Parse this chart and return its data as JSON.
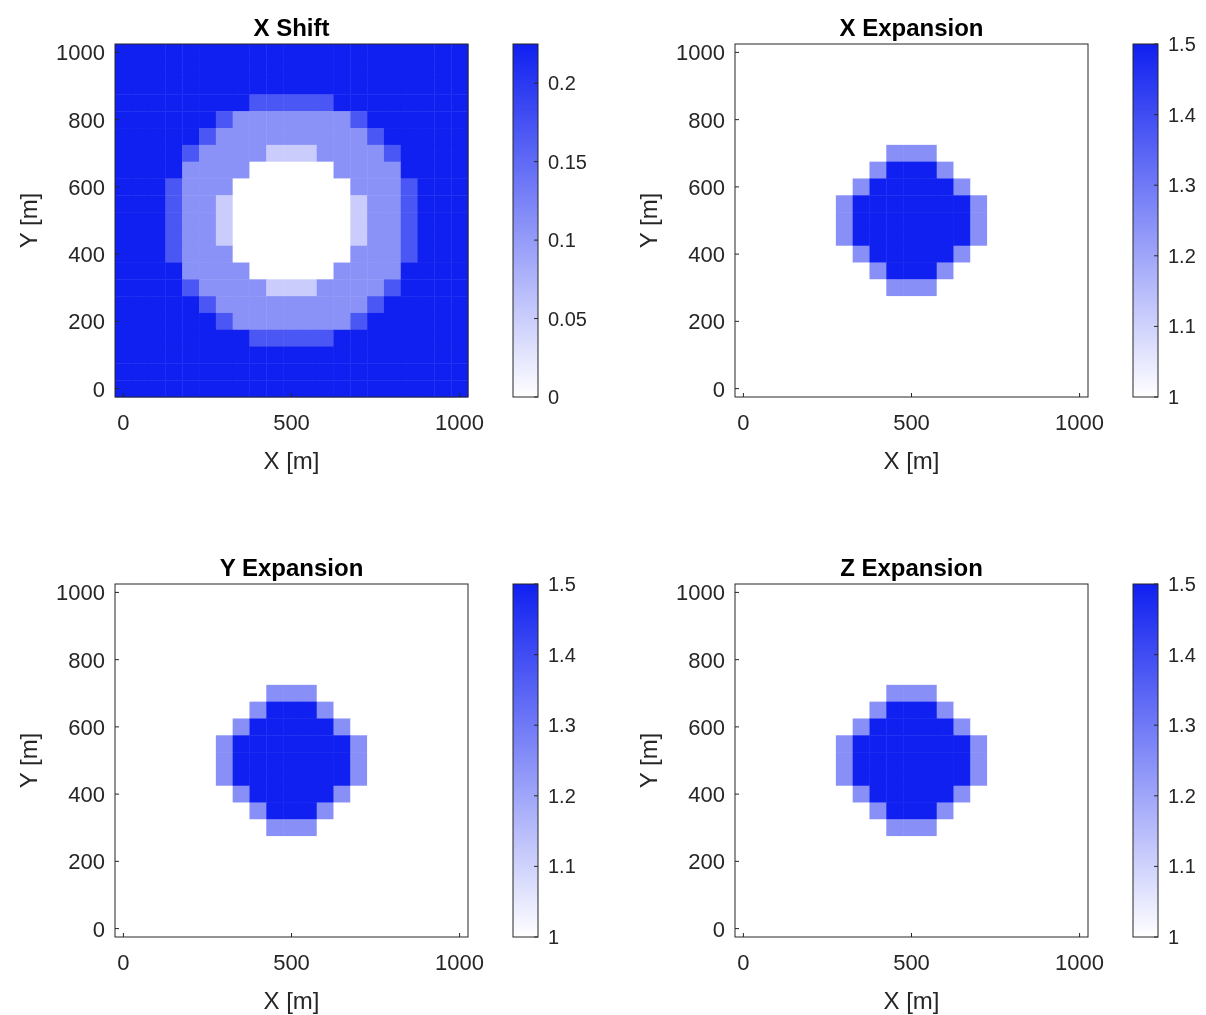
{
  "chart_data": [
    {
      "type": "heatmap",
      "title": "X Shift",
      "xlabel": "X [m]",
      "ylabel": "Y [m]",
      "clim": [
        0,
        0.225
      ],
      "cticks": [
        0,
        0.05,
        0.1,
        0.15,
        0.2
      ],
      "colors": [
        "#ffffff",
        "#1020f0"
      ],
      "categories": [
        "0",
        null,
        null,
        null,
        null,
        null,
        null,
        null,
        null,
        null,
        "500",
        null,
        null,
        null,
        null,
        null,
        null,
        null,
        null,
        null,
        "1000"
      ],
      "y_categories": [
        "1000",
        null,
        null,
        null,
        "800",
        null,
        null,
        null,
        "600",
        null,
        null,
        null,
        "400",
        null,
        null,
        null,
        "200",
        null,
        null,
        null,
        "0"
      ],
      "cells": [
        [
          0.225,
          0.225,
          0.225,
          0.225,
          0.225,
          0.225,
          0.225,
          0.225,
          0.225,
          0.225,
          0.225,
          0.225,
          0.225,
          0.225,
          0.225,
          0.225,
          0.225,
          0.225,
          0.225,
          0.225,
          0.225
        ],
        [
          0.225,
          0.225,
          0.225,
          0.225,
          0.225,
          0.225,
          0.225,
          0.225,
          0.225,
          0.225,
          0.225,
          0.225,
          0.225,
          0.225,
          0.225,
          0.225,
          0.225,
          0.225,
          0.225,
          0.225,
          0.225
        ],
        [
          0.225,
          0.225,
          0.225,
          0.225,
          0.225,
          0.225,
          0.225,
          0.225,
          0.225,
          0.225,
          0.225,
          0.225,
          0.225,
          0.225,
          0.225,
          0.225,
          0.225,
          0.225,
          0.225,
          0.225,
          0.225
        ],
        [
          0.225,
          0.225,
          0.225,
          0.225,
          0.225,
          0.225,
          0.225,
          0.225,
          0.17,
          0.17,
          0.17,
          0.17,
          0.17,
          0.225,
          0.225,
          0.225,
          0.225,
          0.225,
          0.225,
          0.225,
          0.225
        ],
        [
          0.225,
          0.225,
          0.225,
          0.225,
          0.225,
          0.225,
          0.17,
          0.11,
          0.11,
          0.11,
          0.11,
          0.11,
          0.11,
          0.11,
          0.17,
          0.225,
          0.225,
          0.225,
          0.225,
          0.225,
          0.225
        ],
        [
          0.225,
          0.225,
          0.225,
          0.225,
          0.225,
          0.17,
          0.11,
          0.11,
          0.11,
          0.11,
          0.11,
          0.11,
          0.11,
          0.11,
          0.11,
          0.17,
          0.225,
          0.225,
          0.225,
          0.225,
          0.225
        ],
        [
          0.225,
          0.225,
          0.225,
          0.225,
          0.17,
          0.11,
          0.11,
          0.11,
          0.11,
          0.05,
          0.05,
          0.05,
          0.11,
          0.11,
          0.11,
          0.11,
          0.17,
          0.225,
          0.225,
          0.225,
          0.225
        ],
        [
          0.225,
          0.225,
          0.225,
          0.225,
          0.11,
          0.11,
          0.11,
          0.11,
          0,
          0,
          0,
          0,
          0,
          0.11,
          0.11,
          0.11,
          0.11,
          0.225,
          0.225,
          0.225,
          0.225
        ],
        [
          0.225,
          0.225,
          0.225,
          0.17,
          0.11,
          0.11,
          0.11,
          0,
          0,
          0,
          0,
          0,
          0,
          0,
          0.11,
          0.11,
          0.11,
          0.17,
          0.225,
          0.225,
          0.225
        ],
        [
          0.225,
          0.225,
          0.225,
          0.17,
          0.11,
          0.11,
          0.05,
          0,
          0,
          0,
          0,
          0,
          0,
          0,
          0.05,
          0.11,
          0.11,
          0.17,
          0.225,
          0.225,
          0.225
        ],
        [
          0.225,
          0.225,
          0.225,
          0.17,
          0.11,
          0.11,
          0.05,
          0,
          0,
          0,
          0,
          0,
          0,
          0,
          0.05,
          0.11,
          0.11,
          0.17,
          0.225,
          0.225,
          0.225
        ],
        [
          0.225,
          0.225,
          0.225,
          0.17,
          0.11,
          0.11,
          0.05,
          0,
          0,
          0,
          0,
          0,
          0,
          0,
          0.05,
          0.11,
          0.11,
          0.17,
          0.225,
          0.225,
          0.225
        ],
        [
          0.225,
          0.225,
          0.225,
          0.17,
          0.11,
          0.11,
          0.11,
          0,
          0,
          0,
          0,
          0,
          0,
          0,
          0.11,
          0.11,
          0.11,
          0.17,
          0.225,
          0.225,
          0.225
        ],
        [
          0.225,
          0.225,
          0.225,
          0.225,
          0.11,
          0.11,
          0.11,
          0.11,
          0,
          0,
          0,
          0,
          0,
          0.11,
          0.11,
          0.11,
          0.11,
          0.225,
          0.225,
          0.225,
          0.225
        ],
        [
          0.225,
          0.225,
          0.225,
          0.225,
          0.17,
          0.11,
          0.11,
          0.11,
          0.11,
          0.05,
          0.05,
          0.05,
          0.11,
          0.11,
          0.11,
          0.11,
          0.17,
          0.225,
          0.225,
          0.225,
          0.225
        ],
        [
          0.225,
          0.225,
          0.225,
          0.225,
          0.225,
          0.17,
          0.11,
          0.11,
          0.11,
          0.11,
          0.11,
          0.11,
          0.11,
          0.11,
          0.11,
          0.17,
          0.225,
          0.225,
          0.225,
          0.225,
          0.225
        ],
        [
          0.225,
          0.225,
          0.225,
          0.225,
          0.225,
          0.225,
          0.17,
          0.11,
          0.11,
          0.11,
          0.11,
          0.11,
          0.11,
          0.11,
          0.17,
          0.225,
          0.225,
          0.225,
          0.225,
          0.225,
          0.225
        ],
        [
          0.225,
          0.225,
          0.225,
          0.225,
          0.225,
          0.225,
          0.225,
          0.225,
          0.17,
          0.17,
          0.17,
          0.17,
          0.17,
          0.225,
          0.225,
          0.225,
          0.225,
          0.225,
          0.225,
          0.225,
          0.225
        ],
        [
          0.225,
          0.225,
          0.225,
          0.225,
          0.225,
          0.225,
          0.225,
          0.225,
          0.225,
          0.225,
          0.225,
          0.225,
          0.225,
          0.225,
          0.225,
          0.225,
          0.225,
          0.225,
          0.225,
          0.225,
          0.225
        ],
        [
          0.225,
          0.225,
          0.225,
          0.225,
          0.225,
          0.225,
          0.225,
          0.225,
          0.225,
          0.225,
          0.225,
          0.225,
          0.225,
          0.225,
          0.225,
          0.225,
          0.225,
          0.225,
          0.225,
          0.225,
          0.225
        ],
        [
          0.225,
          0.225,
          0.225,
          0.225,
          0.225,
          0.225,
          0.225,
          0.225,
          0.225,
          0.225,
          0.225,
          0.225,
          0.225,
          0.225,
          0.225,
          0.225,
          0.225,
          0.225,
          0.225,
          0.225,
          0.225
        ]
      ]
    },
    {
      "type": "heatmap",
      "title": "X Expansion",
      "xlabel": "X [m]",
      "ylabel": "Y [m]",
      "clim": [
        1,
        1.5
      ],
      "cticks": [
        1,
        1.1,
        1.2,
        1.3,
        1.4,
        1.5
      ],
      "colors": [
        "#ffffff",
        "#1020f0"
      ],
      "categories": [
        "0",
        null,
        null,
        null,
        null,
        null,
        null,
        null,
        null,
        null,
        "500",
        null,
        null,
        null,
        null,
        null,
        null,
        null,
        null,
        null,
        "1000"
      ],
      "y_categories": [
        "1000",
        null,
        null,
        null,
        "800",
        null,
        null,
        null,
        "600",
        null,
        null,
        null,
        "400",
        null,
        null,
        null,
        "200",
        null,
        null,
        null,
        "0"
      ],
      "cells": [
        [
          1,
          1,
          1,
          1,
          1,
          1,
          1,
          1,
          1,
          1,
          1,
          1,
          1,
          1,
          1,
          1,
          1,
          1,
          1,
          1,
          1
        ],
        [
          1,
          1,
          1,
          1,
          1,
          1,
          1,
          1,
          1,
          1,
          1,
          1,
          1,
          1,
          1,
          1,
          1,
          1,
          1,
          1,
          1
        ],
        [
          1,
          1,
          1,
          1,
          1,
          1,
          1,
          1,
          1,
          1,
          1,
          1,
          1,
          1,
          1,
          1,
          1,
          1,
          1,
          1,
          1
        ],
        [
          1,
          1,
          1,
          1,
          1,
          1,
          1,
          1,
          1,
          1,
          1,
          1,
          1,
          1,
          1,
          1,
          1,
          1,
          1,
          1,
          1
        ],
        [
          1,
          1,
          1,
          1,
          1,
          1,
          1,
          1,
          1,
          1,
          1,
          1,
          1,
          1,
          1,
          1,
          1,
          1,
          1,
          1,
          1
        ],
        [
          1,
          1,
          1,
          1,
          1,
          1,
          1,
          1,
          1,
          1,
          1,
          1,
          1,
          1,
          1,
          1,
          1,
          1,
          1,
          1,
          1
        ],
        [
          1,
          1,
          1,
          1,
          1,
          1,
          1,
          1,
          1,
          1.25,
          1.25,
          1.25,
          1,
          1,
          1,
          1,
          1,
          1,
          1,
          1,
          1
        ],
        [
          1,
          1,
          1,
          1,
          1,
          1,
          1,
          1,
          1.25,
          1.5,
          1.5,
          1.5,
          1.25,
          1,
          1,
          1,
          1,
          1,
          1,
          1,
          1
        ],
        [
          1,
          1,
          1,
          1,
          1,
          1,
          1,
          1.25,
          1.5,
          1.5,
          1.5,
          1.5,
          1.5,
          1.25,
          1,
          1,
          1,
          1,
          1,
          1,
          1
        ],
        [
          1,
          1,
          1,
          1,
          1,
          1,
          1.25,
          1.5,
          1.5,
          1.5,
          1.5,
          1.5,
          1.5,
          1.5,
          1.25,
          1,
          1,
          1,
          1,
          1,
          1
        ],
        [
          1,
          1,
          1,
          1,
          1,
          1,
          1.25,
          1.5,
          1.5,
          1.5,
          1.5,
          1.5,
          1.5,
          1.5,
          1.25,
          1,
          1,
          1,
          1,
          1,
          1
        ],
        [
          1,
          1,
          1,
          1,
          1,
          1,
          1.25,
          1.5,
          1.5,
          1.5,
          1.5,
          1.5,
          1.5,
          1.5,
          1.25,
          1,
          1,
          1,
          1,
          1,
          1
        ],
        [
          1,
          1,
          1,
          1,
          1,
          1,
          1,
          1.25,
          1.5,
          1.5,
          1.5,
          1.5,
          1.5,
          1.25,
          1,
          1,
          1,
          1,
          1,
          1,
          1
        ],
        [
          1,
          1,
          1,
          1,
          1,
          1,
          1,
          1,
          1.25,
          1.5,
          1.5,
          1.5,
          1.25,
          1,
          1,
          1,
          1,
          1,
          1,
          1,
          1
        ],
        [
          1,
          1,
          1,
          1,
          1,
          1,
          1,
          1,
          1,
          1.25,
          1.25,
          1.25,
          1,
          1,
          1,
          1,
          1,
          1,
          1,
          1,
          1
        ],
        [
          1,
          1,
          1,
          1,
          1,
          1,
          1,
          1,
          1,
          1,
          1,
          1,
          1,
          1,
          1,
          1,
          1,
          1,
          1,
          1,
          1
        ],
        [
          1,
          1,
          1,
          1,
          1,
          1,
          1,
          1,
          1,
          1,
          1,
          1,
          1,
          1,
          1,
          1,
          1,
          1,
          1,
          1,
          1
        ],
        [
          1,
          1,
          1,
          1,
          1,
          1,
          1,
          1,
          1,
          1,
          1,
          1,
          1,
          1,
          1,
          1,
          1,
          1,
          1,
          1,
          1
        ],
        [
          1,
          1,
          1,
          1,
          1,
          1,
          1,
          1,
          1,
          1,
          1,
          1,
          1,
          1,
          1,
          1,
          1,
          1,
          1,
          1,
          1
        ],
        [
          1,
          1,
          1,
          1,
          1,
          1,
          1,
          1,
          1,
          1,
          1,
          1,
          1,
          1,
          1,
          1,
          1,
          1,
          1,
          1,
          1
        ],
        [
          1,
          1,
          1,
          1,
          1,
          1,
          1,
          1,
          1,
          1,
          1,
          1,
          1,
          1,
          1,
          1,
          1,
          1,
          1,
          1,
          1
        ]
      ]
    },
    {
      "type": "heatmap",
      "title": "Y Expansion",
      "xlabel": "X [m]",
      "ylabel": "Y [m]",
      "clim": [
        1,
        1.5
      ],
      "cticks": [
        1,
        1.1,
        1.2,
        1.3,
        1.4,
        1.5
      ],
      "colors": [
        "#ffffff",
        "#1020f0"
      ],
      "categories": [
        "0",
        null,
        null,
        null,
        null,
        null,
        null,
        null,
        null,
        null,
        "500",
        null,
        null,
        null,
        null,
        null,
        null,
        null,
        null,
        null,
        "1000"
      ],
      "y_categories": [
        "1000",
        null,
        null,
        null,
        "800",
        null,
        null,
        null,
        "600",
        null,
        null,
        null,
        "400",
        null,
        null,
        null,
        "200",
        null,
        null,
        null,
        "0"
      ],
      "cells": [
        [
          1,
          1,
          1,
          1,
          1,
          1,
          1,
          1,
          1,
          1,
          1,
          1,
          1,
          1,
          1,
          1,
          1,
          1,
          1,
          1,
          1
        ],
        [
          1,
          1,
          1,
          1,
          1,
          1,
          1,
          1,
          1,
          1,
          1,
          1,
          1,
          1,
          1,
          1,
          1,
          1,
          1,
          1,
          1
        ],
        [
          1,
          1,
          1,
          1,
          1,
          1,
          1,
          1,
          1,
          1,
          1,
          1,
          1,
          1,
          1,
          1,
          1,
          1,
          1,
          1,
          1
        ],
        [
          1,
          1,
          1,
          1,
          1,
          1,
          1,
          1,
          1,
          1,
          1,
          1,
          1,
          1,
          1,
          1,
          1,
          1,
          1,
          1,
          1
        ],
        [
          1,
          1,
          1,
          1,
          1,
          1,
          1,
          1,
          1,
          1,
          1,
          1,
          1,
          1,
          1,
          1,
          1,
          1,
          1,
          1,
          1
        ],
        [
          1,
          1,
          1,
          1,
          1,
          1,
          1,
          1,
          1,
          1,
          1,
          1,
          1,
          1,
          1,
          1,
          1,
          1,
          1,
          1,
          1
        ],
        [
          1,
          1,
          1,
          1,
          1,
          1,
          1,
          1,
          1,
          1.25,
          1.25,
          1.25,
          1,
          1,
          1,
          1,
          1,
          1,
          1,
          1,
          1
        ],
        [
          1,
          1,
          1,
          1,
          1,
          1,
          1,
          1,
          1.25,
          1.5,
          1.5,
          1.5,
          1.25,
          1,
          1,
          1,
          1,
          1,
          1,
          1,
          1
        ],
        [
          1,
          1,
          1,
          1,
          1,
          1,
          1,
          1.25,
          1.5,
          1.5,
          1.5,
          1.5,
          1.5,
          1.25,
          1,
          1,
          1,
          1,
          1,
          1,
          1
        ],
        [
          1,
          1,
          1,
          1,
          1,
          1,
          1.25,
          1.5,
          1.5,
          1.5,
          1.5,
          1.5,
          1.5,
          1.5,
          1.25,
          1,
          1,
          1,
          1,
          1,
          1
        ],
        [
          1,
          1,
          1,
          1,
          1,
          1,
          1.25,
          1.5,
          1.5,
          1.5,
          1.5,
          1.5,
          1.5,
          1.5,
          1.25,
          1,
          1,
          1,
          1,
          1,
          1
        ],
        [
          1,
          1,
          1,
          1,
          1,
          1,
          1.25,
          1.5,
          1.5,
          1.5,
          1.5,
          1.5,
          1.5,
          1.5,
          1.25,
          1,
          1,
          1,
          1,
          1,
          1
        ],
        [
          1,
          1,
          1,
          1,
          1,
          1,
          1,
          1.25,
          1.5,
          1.5,
          1.5,
          1.5,
          1.5,
          1.25,
          1,
          1,
          1,
          1,
          1,
          1,
          1
        ],
        [
          1,
          1,
          1,
          1,
          1,
          1,
          1,
          1,
          1.25,
          1.5,
          1.5,
          1.5,
          1.25,
          1,
          1,
          1,
          1,
          1,
          1,
          1,
          1
        ],
        [
          1,
          1,
          1,
          1,
          1,
          1,
          1,
          1,
          1,
          1.25,
          1.25,
          1.25,
          1,
          1,
          1,
          1,
          1,
          1,
          1,
          1,
          1
        ],
        [
          1,
          1,
          1,
          1,
          1,
          1,
          1,
          1,
          1,
          1,
          1,
          1,
          1,
          1,
          1,
          1,
          1,
          1,
          1,
          1,
          1
        ],
        [
          1,
          1,
          1,
          1,
          1,
          1,
          1,
          1,
          1,
          1,
          1,
          1,
          1,
          1,
          1,
          1,
          1,
          1,
          1,
          1,
          1
        ],
        [
          1,
          1,
          1,
          1,
          1,
          1,
          1,
          1,
          1,
          1,
          1,
          1,
          1,
          1,
          1,
          1,
          1,
          1,
          1,
          1,
          1
        ],
        [
          1,
          1,
          1,
          1,
          1,
          1,
          1,
          1,
          1,
          1,
          1,
          1,
          1,
          1,
          1,
          1,
          1,
          1,
          1,
          1,
          1
        ],
        [
          1,
          1,
          1,
          1,
          1,
          1,
          1,
          1,
          1,
          1,
          1,
          1,
          1,
          1,
          1,
          1,
          1,
          1,
          1,
          1,
          1
        ],
        [
          1,
          1,
          1,
          1,
          1,
          1,
          1,
          1,
          1,
          1,
          1,
          1,
          1,
          1,
          1,
          1,
          1,
          1,
          1,
          1,
          1
        ]
      ]
    },
    {
      "type": "heatmap",
      "title": "Z Expansion",
      "xlabel": "X [m]",
      "ylabel": "Y [m]",
      "clim": [
        1,
        1.5
      ],
      "cticks": [
        1,
        1.1,
        1.2,
        1.3,
        1.4,
        1.5
      ],
      "colors": [
        "#ffffff",
        "#1020f0"
      ],
      "categories": [
        "0",
        null,
        null,
        null,
        null,
        null,
        null,
        null,
        null,
        null,
        "500",
        null,
        null,
        null,
        null,
        null,
        null,
        null,
        null,
        null,
        "1000"
      ],
      "y_categories": [
        "1000",
        null,
        null,
        null,
        "800",
        null,
        null,
        null,
        "600",
        null,
        null,
        null,
        "400",
        null,
        null,
        null,
        "200",
        null,
        null,
        null,
        "0"
      ],
      "cells": [
        [
          1,
          1,
          1,
          1,
          1,
          1,
          1,
          1,
          1,
          1,
          1,
          1,
          1,
          1,
          1,
          1,
          1,
          1,
          1,
          1,
          1
        ],
        [
          1,
          1,
          1,
          1,
          1,
          1,
          1,
          1,
          1,
          1,
          1,
          1,
          1,
          1,
          1,
          1,
          1,
          1,
          1,
          1,
          1
        ],
        [
          1,
          1,
          1,
          1,
          1,
          1,
          1,
          1,
          1,
          1,
          1,
          1,
          1,
          1,
          1,
          1,
          1,
          1,
          1,
          1,
          1
        ],
        [
          1,
          1,
          1,
          1,
          1,
          1,
          1,
          1,
          1,
          1,
          1,
          1,
          1,
          1,
          1,
          1,
          1,
          1,
          1,
          1,
          1
        ],
        [
          1,
          1,
          1,
          1,
          1,
          1,
          1,
          1,
          1,
          1,
          1,
          1,
          1,
          1,
          1,
          1,
          1,
          1,
          1,
          1,
          1
        ],
        [
          1,
          1,
          1,
          1,
          1,
          1,
          1,
          1,
          1,
          1,
          1,
          1,
          1,
          1,
          1,
          1,
          1,
          1,
          1,
          1,
          1
        ],
        [
          1,
          1,
          1,
          1,
          1,
          1,
          1,
          1,
          1,
          1.25,
          1.25,
          1.25,
          1,
          1,
          1,
          1,
          1,
          1,
          1,
          1,
          1
        ],
        [
          1,
          1,
          1,
          1,
          1,
          1,
          1,
          1,
          1.25,
          1.5,
          1.5,
          1.5,
          1.25,
          1,
          1,
          1,
          1,
          1,
          1,
          1,
          1
        ],
        [
          1,
          1,
          1,
          1,
          1,
          1,
          1,
          1.25,
          1.5,
          1.5,
          1.5,
          1.5,
          1.5,
          1.25,
          1,
          1,
          1,
          1,
          1,
          1,
          1
        ],
        [
          1,
          1,
          1,
          1,
          1,
          1,
          1.25,
          1.5,
          1.5,
          1.5,
          1.5,
          1.5,
          1.5,
          1.5,
          1.25,
          1,
          1,
          1,
          1,
          1,
          1
        ],
        [
          1,
          1,
          1,
          1,
          1,
          1,
          1.25,
          1.5,
          1.5,
          1.5,
          1.5,
          1.5,
          1.5,
          1.5,
          1.25,
          1,
          1,
          1,
          1,
          1,
          1
        ],
        [
          1,
          1,
          1,
          1,
          1,
          1,
          1.25,
          1.5,
          1.5,
          1.5,
          1.5,
          1.5,
          1.5,
          1.5,
          1.25,
          1,
          1,
          1,
          1,
          1,
          1
        ],
        [
          1,
          1,
          1,
          1,
          1,
          1,
          1,
          1.25,
          1.5,
          1.5,
          1.5,
          1.5,
          1.5,
          1.25,
          1,
          1,
          1,
          1,
          1,
          1,
          1
        ],
        [
          1,
          1,
          1,
          1,
          1,
          1,
          1,
          1,
          1.25,
          1.5,
          1.5,
          1.5,
          1.25,
          1,
          1,
          1,
          1,
          1,
          1,
          1,
          1
        ],
        [
          1,
          1,
          1,
          1,
          1,
          1,
          1,
          1,
          1,
          1.25,
          1.25,
          1.25,
          1,
          1,
          1,
          1,
          1,
          1,
          1,
          1,
          1
        ],
        [
          1,
          1,
          1,
          1,
          1,
          1,
          1,
          1,
          1,
          1,
          1,
          1,
          1,
          1,
          1,
          1,
          1,
          1,
          1,
          1,
          1
        ],
        [
          1,
          1,
          1,
          1,
          1,
          1,
          1,
          1,
          1,
          1,
          1,
          1,
          1,
          1,
          1,
          1,
          1,
          1,
          1,
          1,
          1
        ],
        [
          1,
          1,
          1,
          1,
          1,
          1,
          1,
          1,
          1,
          1,
          1,
          1,
          1,
          1,
          1,
          1,
          1,
          1,
          1,
          1,
          1
        ],
        [
          1,
          1,
          1,
          1,
          1,
          1,
          1,
          1,
          1,
          1,
          1,
          1,
          1,
          1,
          1,
          1,
          1,
          1,
          1,
          1,
          1
        ],
        [
          1,
          1,
          1,
          1,
          1,
          1,
          1,
          1,
          1,
          1,
          1,
          1,
          1,
          1,
          1,
          1,
          1,
          1,
          1,
          1,
          1
        ],
        [
          1,
          1,
          1,
          1,
          1,
          1,
          1,
          1,
          1,
          1,
          1,
          1,
          1,
          1,
          1,
          1,
          1,
          1,
          1,
          1,
          1
        ]
      ]
    }
  ]
}
